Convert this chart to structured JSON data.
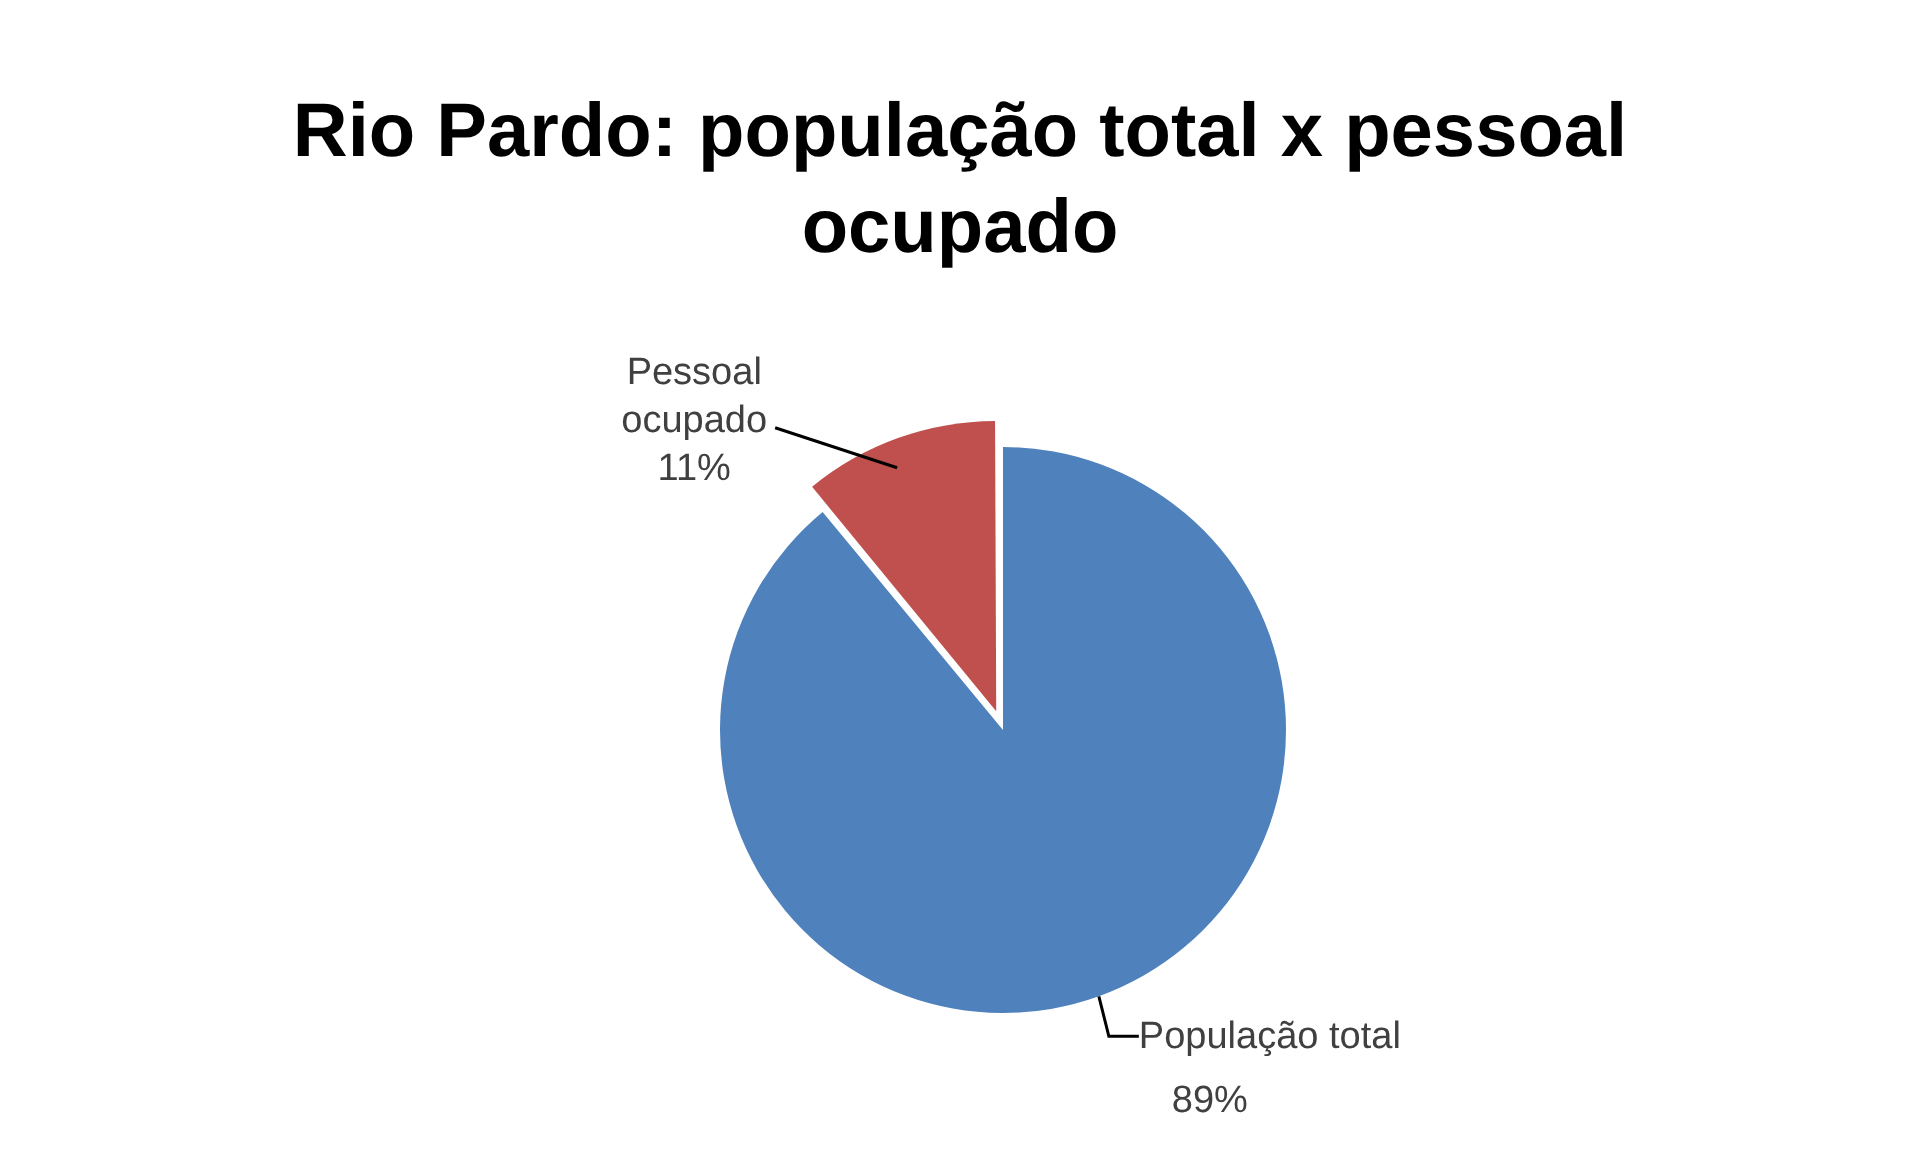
{
  "chart_data": {
    "type": "pie",
    "title": "Rio Pardo: população total x pessoal ocupado",
    "categories": [
      "População total",
      "Pessoal ocupado"
    ],
    "values": [
      89,
      11
    ],
    "colors": [
      "#4f81bd",
      "#c0504d"
    ],
    "value_labels": [
      "89%",
      "11%"
    ],
    "legend": false
  }
}
